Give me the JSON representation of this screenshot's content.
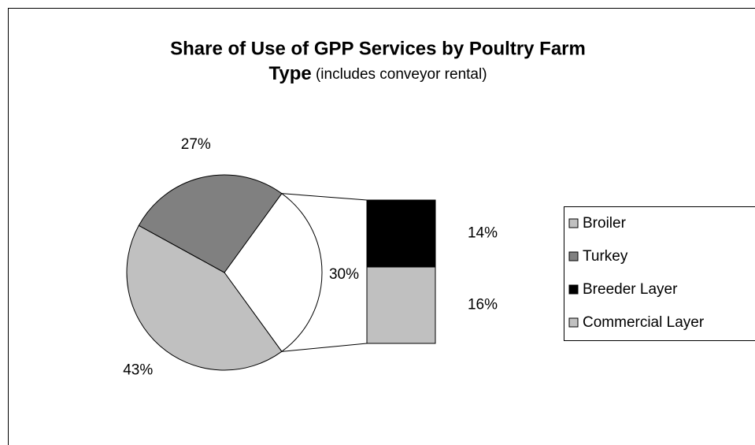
{
  "chart_data": {
    "type": "bar-of-pie",
    "title": [
      "Share of Use of GPP Services by Poultry Farm",
      "Type"
    ],
    "subtitle": "(includes conveyor rental)",
    "categories": [
      "Broiler",
      "Turkey",
      "Breeder Layer",
      "Commercial Layer"
    ],
    "values": [
      43,
      27,
      14,
      16
    ],
    "value_labels": [
      "43%",
      "27%",
      "14%",
      "16%"
    ],
    "colors": [
      "#c0c0c0",
      "#808080",
      "#000000",
      "#c0c0c0"
    ],
    "secondary_count": 2,
    "other": {
      "value": 30,
      "label": "30%"
    },
    "legend": "right"
  }
}
